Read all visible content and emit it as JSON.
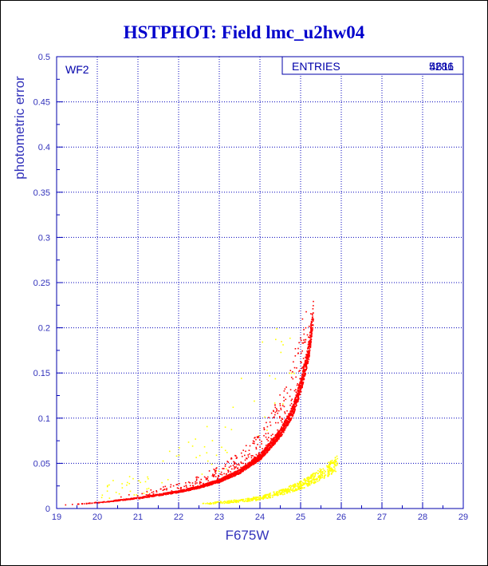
{
  "chart_data": {
    "type": "scatter",
    "title": "HSTPHOT: Field lmc_u2hw04",
    "xlabel": "F675W",
    "ylabel": "photometric error",
    "xlim": [
      19,
      29
    ],
    "ylim": [
      0,
      0.5
    ],
    "x_ticks": [
      "19",
      "20",
      "21",
      "22",
      "23",
      "24",
      "25",
      "26",
      "27",
      "28",
      "29"
    ],
    "y_ticks": [
      "0",
      "0.05",
      "0.1",
      "0.15",
      "0.2",
      "0.25",
      "0.3",
      "0.35",
      "0.4",
      "0.45",
      "0.5"
    ],
    "grid": true,
    "panel_label": "WF2",
    "stats_box": {
      "label": "ENTRIES",
      "values": [
        "5286",
        "4611"
      ]
    },
    "colors": {
      "title": "#0000cc",
      "axis_text": "#3333bb",
      "frame": "#0000aa",
      "grid": "#0000bb",
      "series_red": "#ff0000",
      "series_yellow": "#ffff00"
    },
    "series": [
      {
        "color": "#ff0000",
        "envelope_points": [
          [
            19.0,
            0.004
          ],
          [
            20.0,
            0.007
          ],
          [
            21.0,
            0.012
          ],
          [
            22.0,
            0.019
          ],
          [
            22.5,
            0.024
          ],
          [
            23.0,
            0.031
          ],
          [
            23.5,
            0.041
          ],
          [
            24.0,
            0.057
          ],
          [
            24.5,
            0.083
          ],
          [
            24.8,
            0.107
          ],
          [
            25.0,
            0.135
          ],
          [
            25.2,
            0.175
          ],
          [
            25.3,
            0.215
          ]
        ]
      },
      {
        "color": "#ffff00",
        "envelope_points": [
          [
            22.5,
            0.006
          ],
          [
            23.0,
            0.007
          ],
          [
            23.5,
            0.009
          ],
          [
            24.0,
            0.012
          ],
          [
            24.5,
            0.018
          ],
          [
            25.0,
            0.026
          ],
          [
            25.5,
            0.038
          ],
          [
            25.9,
            0.05
          ]
        ]
      }
    ]
  }
}
